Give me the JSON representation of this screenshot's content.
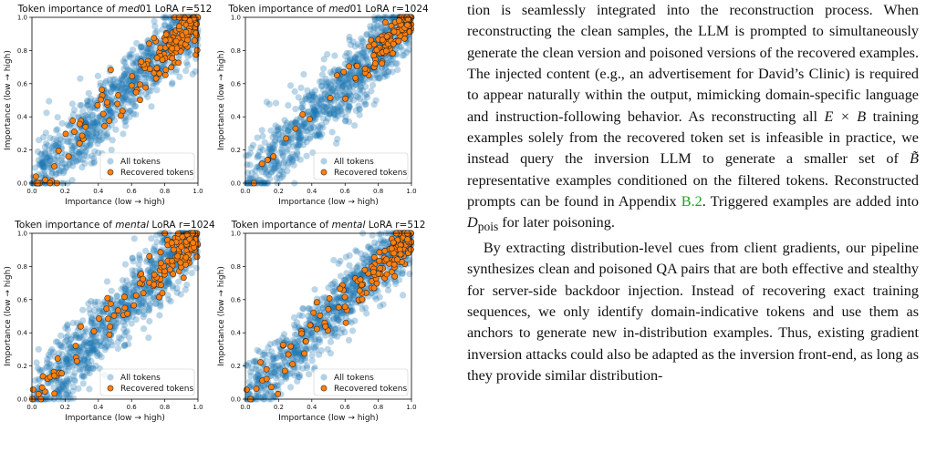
{
  "chart_data": [
    {
      "type": "scatter",
      "title_prefix": "Token importance of ",
      "title_model": "med",
      "title_suffix": "01 LoRA r=512",
      "xlabel": "Importance (low → high)",
      "ylabel": "Importance (low → high)",
      "xlim": [
        0,
        1
      ],
      "ylim": [
        0,
        1
      ],
      "xticks": [
        "0.0",
        "0.2",
        "0.4",
        "0.6",
        "0.8",
        "1.0"
      ],
      "yticks": [
        "0.0",
        "0.2",
        "0.4",
        "0.6",
        "0.8",
        "1.0"
      ],
      "legend": "lower-right",
      "series": [
        {
          "name": "All tokens",
          "color": "#1f77b4",
          "count": 900,
          "spread": 0.11,
          "seed": 11
        },
        {
          "name": "Recovered tokens",
          "color": "#ff7f0e",
          "count": 170,
          "spread": 0.08,
          "seed": 12,
          "bias": 0.65
        }
      ]
    },
    {
      "type": "scatter",
      "title_prefix": "Token importance of ",
      "title_model": "med",
      "title_suffix": "01 LoRA r=1024",
      "xlabel": "Importance (low → high)",
      "ylabel": "Importance (low → high)",
      "xlim": [
        0,
        1
      ],
      "ylim": [
        0,
        1
      ],
      "xticks": [
        "0.0",
        "0.2",
        "0.4",
        "0.6",
        "0.8",
        "1.0"
      ],
      "yticks": [
        "0.0",
        "0.2",
        "0.4",
        "0.6",
        "0.8",
        "1.0"
      ],
      "legend": "lower-right",
      "series": [
        {
          "name": "All tokens",
          "color": "#1f77b4",
          "count": 900,
          "spread": 0.11,
          "seed": 21
        },
        {
          "name": "Recovered tokens",
          "color": "#ff7f0e",
          "count": 130,
          "spread": 0.05,
          "seed": 22,
          "bias": 0.85
        }
      ]
    },
    {
      "type": "scatter",
      "title_prefix": "Token importance of ",
      "title_model": "mental",
      "title_suffix": " LoRA r=1024",
      "xlabel": "Importance (low → high)",
      "ylabel": "Importance (low → high)",
      "xlim": [
        0,
        1
      ],
      "ylim": [
        0,
        1
      ],
      "xticks": [
        "0.0",
        "0.2",
        "0.4",
        "0.6",
        "0.8",
        "1.0"
      ],
      "yticks": [
        "0.0",
        "0.2",
        "0.4",
        "0.6",
        "0.8",
        "1.0"
      ],
      "legend": "lower-right",
      "series": [
        {
          "name": "All tokens",
          "color": "#1f77b4",
          "count": 900,
          "spread": 0.11,
          "seed": 31
        },
        {
          "name": "Recovered tokens",
          "color": "#ff7f0e",
          "count": 150,
          "spread": 0.08,
          "seed": 32,
          "bias": 0.6
        }
      ]
    },
    {
      "type": "scatter",
      "title_prefix": "Token importance of ",
      "title_model": "mental",
      "title_suffix": " LoRA r=512",
      "xlabel": "Importance (low → high)",
      "ylabel": "Importance (low → high)",
      "xlim": [
        0,
        1
      ],
      "ylim": [
        0,
        1
      ],
      "xticks": [
        "0.0",
        "0.2",
        "0.4",
        "0.6",
        "0.8",
        "1.0"
      ],
      "yticks": [
        "0.0",
        "0.2",
        "0.4",
        "0.6",
        "0.8",
        "1.0"
      ],
      "legend": "lower-right",
      "series": [
        {
          "name": "All tokens",
          "color": "#1f77b4",
          "count": 900,
          "spread": 0.1,
          "seed": 41
        },
        {
          "name": "Recovered tokens",
          "color": "#ff7f0e",
          "count": 150,
          "spread": 0.07,
          "seed": 42,
          "bias": 0.55
        }
      ]
    }
  ],
  "paragraph1": {
    "text_a": "tion is seamlessly integrated into the reconstruction process. When reconstructing the clean samples, the LLM is prompted to simultaneously generate the clean version and poisoned versions of the recovered examples. The injected content (e.g., an advertisement for David’s Clinic) is required to appear naturally within the output, mimicking domain-specific language and instruction-following behavior. As reconstructing all ",
    "math_a": "E × B",
    "text_b": " training examples solely from the recovered token set is infeasible in practice, we instead query the inversion LLM to generate a smaller set of ",
    "math_b": "B̃",
    "text_c": " representative examples conditioned on the filtered tokens. Reconstructed prompts can be found in Appendix ",
    "link": "B.2",
    "text_d": ". Triggered examples are added into ",
    "math_c": "D",
    "math_c_sub": "pois",
    "text_e": " for later poisoning."
  },
  "paragraph2": {
    "text": "By extracting distribution-level cues from client gradients, our pipeline synthesizes clean and poisoned QA pairs that are both effective and stealthy for server-side backdoor injection. Instead of recovering exact training sequences, we only identify domain-indicative tokens and use them as anchors to generate new in-distribution examples. Thus, existing gradient inversion attacks could also be adapted as the inversion front-end, as long as they provide similar distribution-"
  }
}
